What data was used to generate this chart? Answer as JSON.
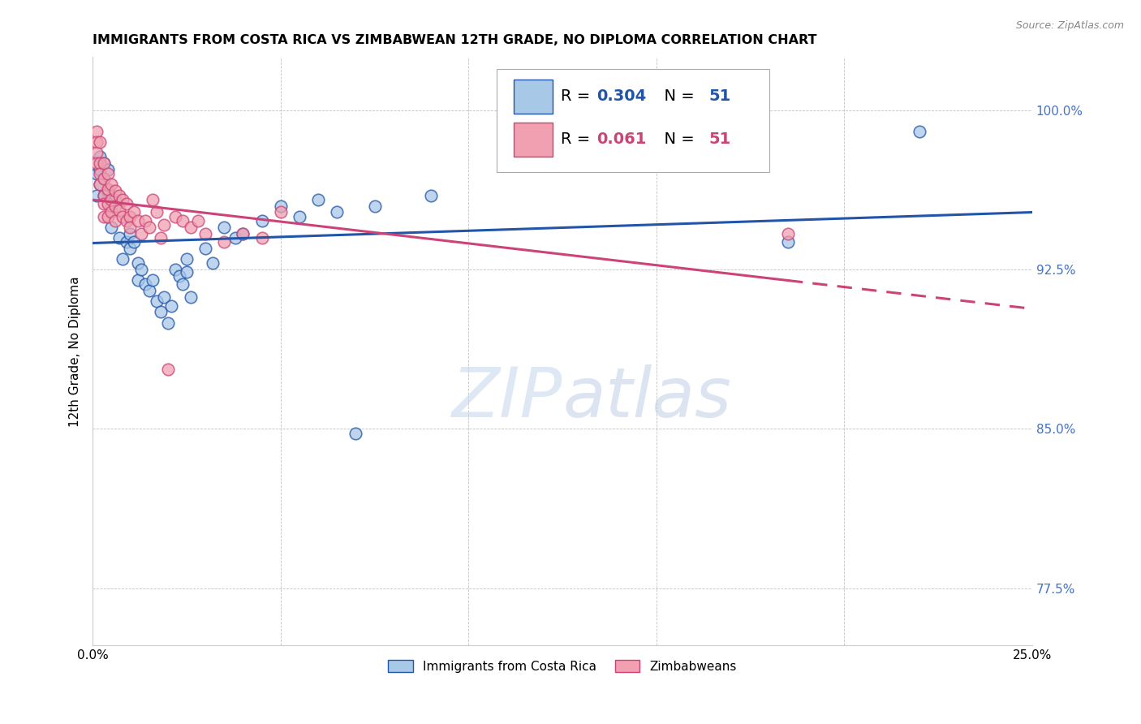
{
  "title": "IMMIGRANTS FROM COSTA RICA VS ZIMBABWEAN 12TH GRADE, NO DIPLOMA CORRELATION CHART",
  "source": "Source: ZipAtlas.com",
  "ylabel_label": "12th Grade, No Diploma",
  "legend_label1": "Immigrants from Costa Rica",
  "legend_label2": "Zimbabweans",
  "R1": 0.304,
  "N1": 51,
  "R2": 0.061,
  "N2": 51,
  "color1": "#a8c8e8",
  "color2": "#f0a0b0",
  "trend_color1": "#2255aa",
  "trend_color2": "#cc4477",
  "xmin": 0.0,
  "xmax": 0.25,
  "ymin": 0.748,
  "ymax": 1.025,
  "yticks": [
    0.775,
    0.85,
    0.925,
    1.0
  ],
  "ytick_labels": [
    "77.5%",
    "85.0%",
    "92.5%",
    "100.0%"
  ],
  "xticks": [
    0.0,
    0.05,
    0.1,
    0.15,
    0.2,
    0.25
  ],
  "xtick_labels": [
    "0.0%",
    "",
    "",
    "",
    "",
    "25.0%"
  ],
  "blue_x": [
    0.001,
    0.001,
    0.002,
    0.002,
    0.002,
    0.003,
    0.003,
    0.003,
    0.004,
    0.004,
    0.005,
    0.005,
    0.006,
    0.007,
    0.008,
    0.009,
    0.01,
    0.01,
    0.011,
    0.012,
    0.012,
    0.013,
    0.014,
    0.015,
    0.016,
    0.017,
    0.018,
    0.019,
    0.02,
    0.021,
    0.022,
    0.023,
    0.024,
    0.025,
    0.025,
    0.026,
    0.03,
    0.032,
    0.035,
    0.038,
    0.04,
    0.045,
    0.05,
    0.055,
    0.06,
    0.065,
    0.07,
    0.075,
    0.09,
    0.185,
    0.22
  ],
  "blue_y": [
    0.97,
    0.96,
    0.978,
    0.972,
    0.965,
    0.975,
    0.968,
    0.96,
    0.972,
    0.962,
    0.955,
    0.945,
    0.958,
    0.94,
    0.93,
    0.938,
    0.942,
    0.935,
    0.938,
    0.928,
    0.92,
    0.925,
    0.918,
    0.915,
    0.92,
    0.91,
    0.905,
    0.912,
    0.9,
    0.908,
    0.925,
    0.922,
    0.918,
    0.93,
    0.924,
    0.912,
    0.935,
    0.928,
    0.945,
    0.94,
    0.942,
    0.948,
    0.955,
    0.95,
    0.958,
    0.952,
    0.848,
    0.955,
    0.96,
    0.938,
    0.99
  ],
  "pink_x": [
    0.001,
    0.001,
    0.001,
    0.001,
    0.002,
    0.002,
    0.002,
    0.002,
    0.003,
    0.003,
    0.003,
    0.003,
    0.003,
    0.004,
    0.004,
    0.004,
    0.004,
    0.005,
    0.005,
    0.005,
    0.006,
    0.006,
    0.006,
    0.007,
    0.007,
    0.008,
    0.008,
    0.009,
    0.009,
    0.01,
    0.01,
    0.011,
    0.012,
    0.013,
    0.014,
    0.015,
    0.016,
    0.017,
    0.018,
    0.019,
    0.02,
    0.022,
    0.024,
    0.026,
    0.028,
    0.03,
    0.035,
    0.04,
    0.045,
    0.05,
    0.185
  ],
  "pink_y": [
    0.99,
    0.985,
    0.98,
    0.975,
    0.985,
    0.975,
    0.97,
    0.965,
    0.975,
    0.968,
    0.96,
    0.956,
    0.95,
    0.97,
    0.963,
    0.956,
    0.95,
    0.965,
    0.958,
    0.952,
    0.962,
    0.955,
    0.948,
    0.96,
    0.953,
    0.958,
    0.95,
    0.956,
    0.948,
    0.95,
    0.945,
    0.952,
    0.948,
    0.942,
    0.948,
    0.945,
    0.958,
    0.952,
    0.94,
    0.946,
    0.878,
    0.95,
    0.948,
    0.945,
    0.948,
    0.942,
    0.938,
    0.942,
    0.94,
    0.952,
    0.942
  ],
  "watermark_zip": "ZIP",
  "watermark_atlas": "atlas",
  "title_fontsize": 11.5,
  "axis_label_fontsize": 11,
  "tick_fontsize": 11,
  "legend_fontsize": 14
}
